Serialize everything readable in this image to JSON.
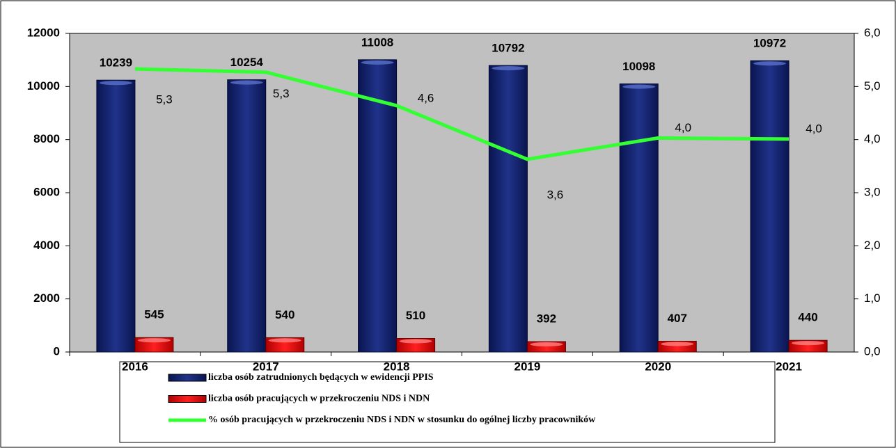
{
  "chart_data": {
    "type": "bar",
    "categories": [
      "2016",
      "2017",
      "2018",
      "2019",
      "2020",
      "2021"
    ],
    "series": [
      {
        "name": "liczba osób zatrudnionych będących w ewidencji PPIS",
        "color": "#14246e",
        "values": [
          10239,
          10254,
          11008,
          10792,
          10098,
          10972
        ]
      },
      {
        "name": "liczba osób pracujących w przekroczeniu NDS i NDN",
        "color": "#ff0000",
        "values": [
          545,
          540,
          510,
          392,
          407,
          440
        ]
      },
      {
        "name": "% osób pracujących w przekroczeniu NDS i NDN w stosunku do ogólnej liczby pracowników",
        "color": "#33ff33",
        "type": "line",
        "axis": "y2",
        "values": [
          5.33,
          5.27,
          4.64,
          3.63,
          4.03,
          4.01
        ],
        "value_labels": [
          "5,3",
          "5,3",
          "4,6",
          "3,6",
          "4,0",
          "4,0"
        ]
      }
    ],
    "ylim": [
      0,
      12000
    ],
    "yticks": [
      0,
      2000,
      4000,
      6000,
      8000,
      10000,
      12000
    ],
    "y2lim": [
      0,
      6
    ],
    "y2ticks": [
      {
        "value": 0,
        "label": "0,0"
      },
      {
        "value": 1,
        "label": "1,0"
      },
      {
        "value": 2,
        "label": "2,0"
      },
      {
        "value": 3,
        "label": "3,0"
      },
      {
        "value": 4,
        "label": "4,0"
      },
      {
        "value": 5,
        "label": "5,0"
      },
      {
        "value": 6,
        "label": "6,0"
      }
    ],
    "grid": false,
    "legend": "bottom"
  }
}
